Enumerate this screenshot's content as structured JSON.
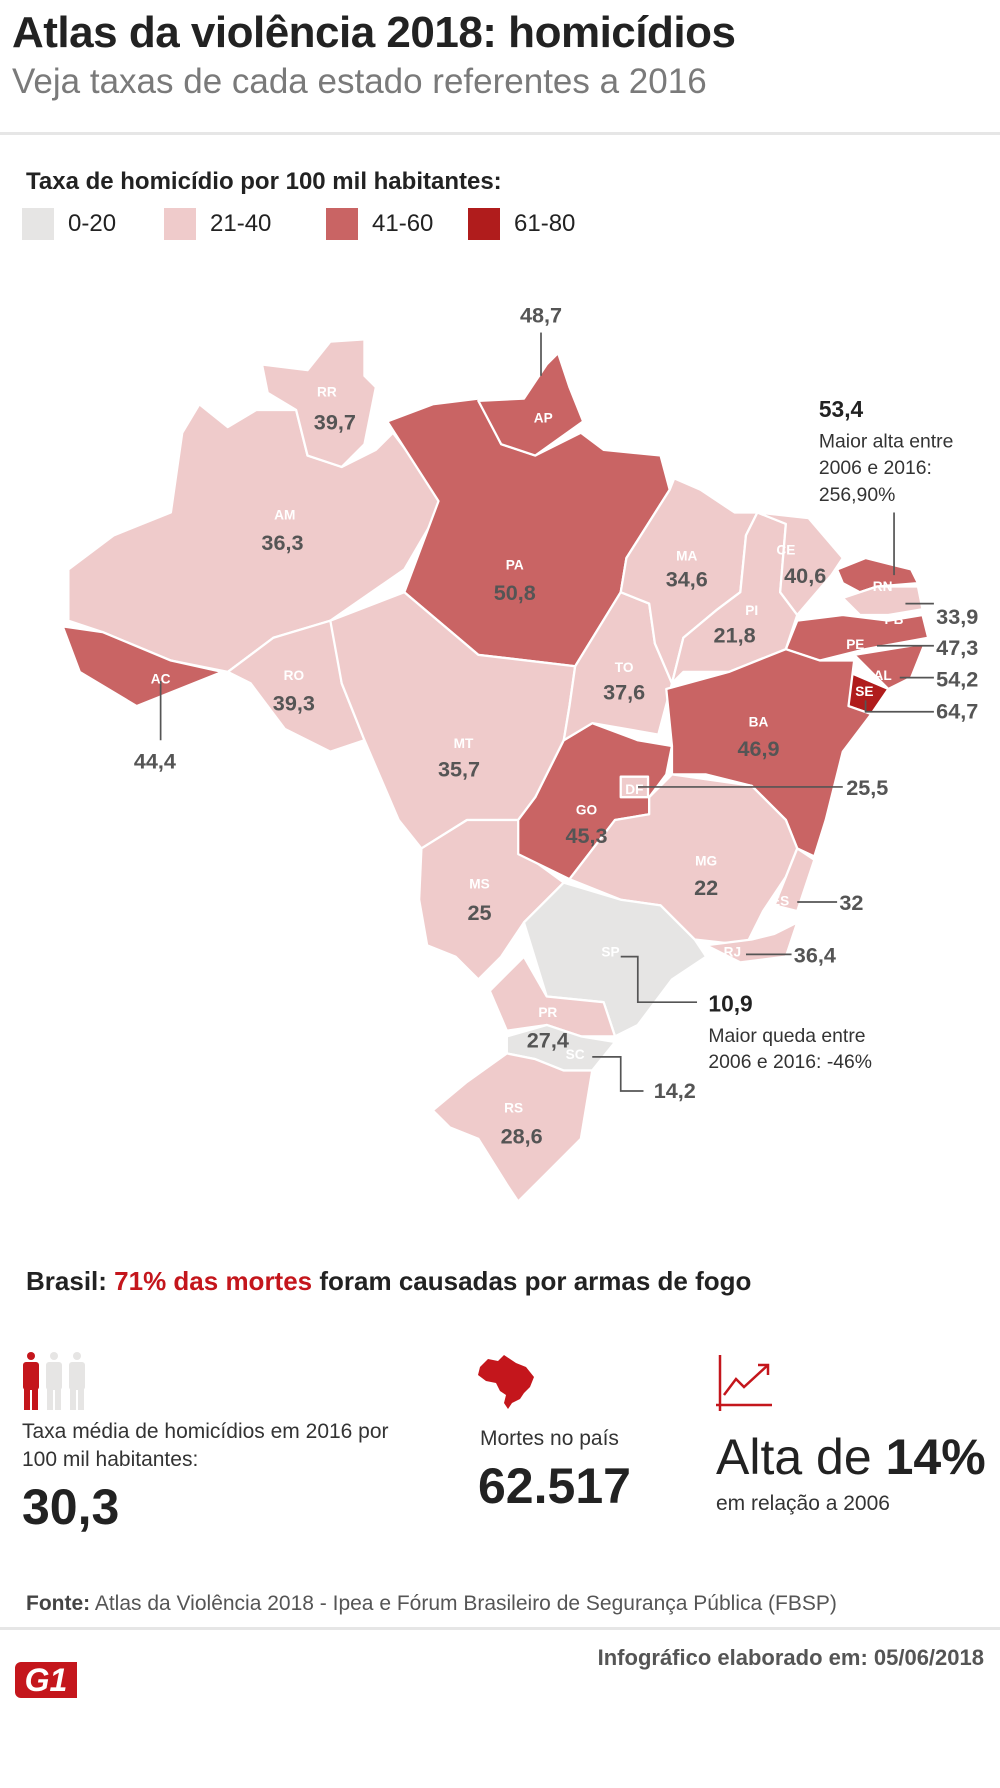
{
  "header": {
    "title": "Atlas da violência 2018: homicídios",
    "subtitle": "Veja taxas de cada estado referentes a 2016"
  },
  "colors": {
    "0-20": "#e6e5e4",
    "21-40": "#efcbcb",
    "41-60": "#c96464",
    "61-80": "#b01c1c",
    "accent": "#c4161c"
  },
  "chart_data": {
    "type": "choropleth-map",
    "title": "Taxa de homicídio por 100 mil habitantes:",
    "legend": [
      "0-20",
      "21-40",
      "41-60",
      "61-80"
    ],
    "states": {
      "RR": {
        "abbr": "RR",
        "value": "39,7",
        "range": "21-40"
      },
      "AP": {
        "abbr": "AP",
        "value": "48,7",
        "range": "41-60"
      },
      "AM": {
        "abbr": "AM",
        "value": "36,3",
        "range": "21-40"
      },
      "PA": {
        "abbr": "PA",
        "value": "50,8",
        "range": "41-60"
      },
      "AC": {
        "abbr": "AC",
        "value": "44,4",
        "range": "41-60"
      },
      "RO": {
        "abbr": "RO",
        "value": "39,3",
        "range": "21-40"
      },
      "MT": {
        "abbr": "MT",
        "value": "35,7",
        "range": "21-40"
      },
      "MA": {
        "abbr": "MA",
        "value": "34,6",
        "range": "21-40"
      },
      "PI": {
        "abbr": "PI",
        "value": "21,8",
        "range": "21-40"
      },
      "CE": {
        "abbr": "CE",
        "value": "40,6",
        "range": "21-40"
      },
      "RN": {
        "abbr": "RN",
        "value": "53,4",
        "range": "41-60"
      },
      "PB": {
        "abbr": "PB",
        "value": "33,9",
        "range": "21-40"
      },
      "PE": {
        "abbr": "PE",
        "value": "47,3",
        "range": "41-60"
      },
      "AL": {
        "abbr": "AL",
        "value": "54,2",
        "range": "41-60"
      },
      "SE": {
        "abbr": "SE",
        "value": "64,7",
        "range": "61-80"
      },
      "TO": {
        "abbr": "TO",
        "value": "37,6",
        "range": "21-40"
      },
      "BA": {
        "abbr": "BA",
        "value": "46,9",
        "range": "41-60"
      },
      "DF": {
        "abbr": "DF",
        "value": "25,5",
        "range": "21-40"
      },
      "GO": {
        "abbr": "GO",
        "value": "45,3",
        "range": "41-60"
      },
      "MG": {
        "abbr": "MG",
        "value": "22",
        "range": "21-40"
      },
      "ES": {
        "abbr": "ES",
        "value": "32",
        "range": "21-40"
      },
      "RJ": {
        "abbr": "RJ",
        "value": "36,4",
        "range": "21-40"
      },
      "MS": {
        "abbr": "MS",
        "value": "25",
        "range": "21-40"
      },
      "SP": {
        "abbr": "SP",
        "value": "10,9",
        "range": "0-20"
      },
      "PR": {
        "abbr": "PR",
        "value": "27,4",
        "range": "21-40"
      },
      "SC": {
        "abbr": "SC",
        "value": "14,2",
        "range": "0-20"
      },
      "RS": {
        "abbr": "RS",
        "value": "28,6",
        "range": "21-40"
      }
    },
    "annotations": {
      "rn_note": [
        "Maior alta entre",
        "2006 e 2016:",
        "256,90%"
      ],
      "sp_note": [
        "Maior queda entre",
        "2006 e 2016: -46%"
      ]
    }
  },
  "summary": {
    "headline_prefix": "Brasil:",
    "headline_highlight": "71% das mortes",
    "headline_suffix": "foram causadas por armas de fogo",
    "rate_label": "Taxa média de homicídios em 2016 por 100 mil habitantes:",
    "rate_value": "30,3",
    "deaths_label": "Mortes no país",
    "deaths_value": "62.517",
    "increase_prefix": "Alta de",
    "increase_value": "14%",
    "increase_label": "em relação a 2006"
  },
  "footer": {
    "source_label": "Fonte:",
    "source_text": "Atlas da Violência 2018 - Ipea e Fórum Brasileiro de Segurança Pública (FBSP)",
    "logo": "G1",
    "credit": "Infográfico elaborado em: 05/06/2018"
  }
}
